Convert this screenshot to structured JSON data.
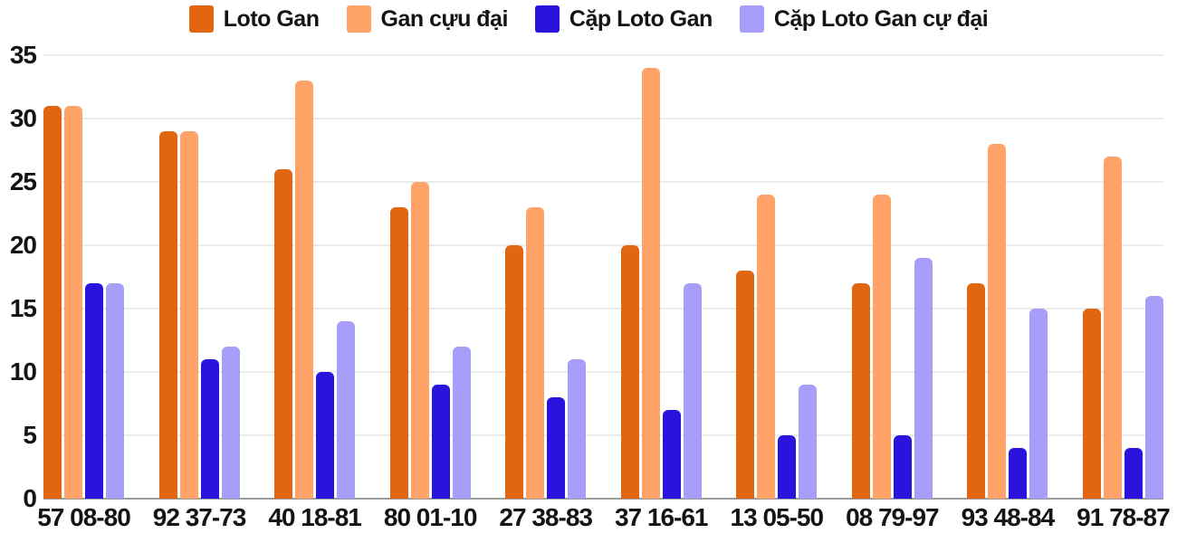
{
  "chart_data": {
    "type": "bar",
    "title": "",
    "xlabel": "",
    "ylabel": "",
    "categories": [
      "57 08-80",
      "92 37-73",
      "40 18-81",
      "80 01-10",
      "27 38-83",
      "37 16-61",
      "13 05-50",
      "08 79-97",
      "93 48-84",
      "91 78-87"
    ],
    "series": [
      {
        "name": "Loto Gan",
        "color": "#e2650f",
        "values": [
          31,
          29,
          26,
          23,
          20,
          20,
          18,
          17,
          17,
          15
        ]
      },
      {
        "name": "Gan cựu đại",
        "color": "#ffa369",
        "values": [
          31,
          29,
          33,
          25,
          23,
          34,
          24,
          24,
          28,
          27
        ]
      },
      {
        "name": "Cặp Loto Gan",
        "color": "#2a14dd",
        "values": [
          17,
          11,
          10,
          9,
          8,
          7,
          5,
          5,
          4,
          4
        ]
      },
      {
        "name": "Cặp Loto Gan cự đại",
        "color": "#a69ef8",
        "values": [
          17,
          12,
          14,
          12,
          11,
          17,
          9,
          19,
          15,
          16
        ]
      }
    ],
    "y_ticks": [
      0,
      5,
      10,
      15,
      20,
      25,
      30,
      35
    ],
    "ylim": [
      0,
      35
    ],
    "grid": true,
    "legend_position": "top"
  },
  "colors": {
    "gridline": "#ebebeb",
    "axis_baseline": "#9a9a9a",
    "label_text": "#141414",
    "background": "#ffffff"
  }
}
